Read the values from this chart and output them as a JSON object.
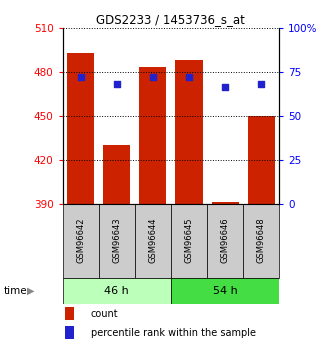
{
  "title": "GDS2233 / 1453736_s_at",
  "categories": [
    "GSM96642",
    "GSM96643",
    "GSM96644",
    "GSM96645",
    "GSM96646",
    "GSM96648"
  ],
  "bar_values": [
    493,
    430,
    483,
    488,
    391,
    450
  ],
  "bar_base": 390,
  "percentile_values": [
    72,
    68,
    72,
    72,
    66,
    68
  ],
  "bar_color": "#cc2200",
  "percentile_color": "#2222cc",
  "left_ylim": [
    390,
    510
  ],
  "right_ylim": [
    0,
    100
  ],
  "left_yticks": [
    390,
    420,
    450,
    480,
    510
  ],
  "right_yticks": [
    0,
    25,
    50,
    75,
    100
  ],
  "group1_label": "46 h",
  "group2_label": "54 h",
  "group1_indices": [
    0,
    1,
    2
  ],
  "group2_indices": [
    3,
    4,
    5
  ],
  "group1_color": "#bbffbb",
  "group2_color": "#44dd44",
  "sample_box_color": "#cccccc",
  "xlabel_label": "time",
  "legend_count": "count",
  "legend_percentile": "percentile rank within the sample",
  "bar_width": 0.75
}
